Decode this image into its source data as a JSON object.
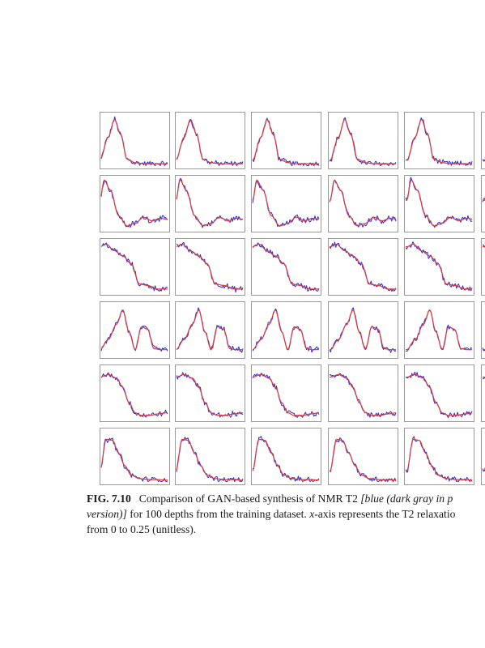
{
  "caption": {
    "label": "FIG. 7.10",
    "line1_text": "Comparison of GAN-based synthesis of NMR T2 ",
    "line1_italic": "[blue (dark gray in p",
    "line2_italic": "version)]",
    "line2_text_a": " for 100 depths from the training dataset. ",
    "line2_italic_x": "x",
    "line2_text_b": "-axis represents the T2 relaxatio",
    "line3_text": "from 0 to 0.25 (unitless)."
  },
  "colors": {
    "measured": "#2a2ad6",
    "synthesized": "#d9383a",
    "frame": "#9a9a9a"
  },
  "chart_data": {
    "type": "line",
    "layout": "grid of small multiples, 6 rows visible, 5 full columns plus a cut-off sixth",
    "series_names_from_caption": [
      "blue (measured)",
      "red (synthesized)"
    ],
    "x_range": [
      0,
      64
    ],
    "y_range": [
      0,
      1
    ],
    "rows": [
      {
        "row": 1,
        "shape": "single narrow peak",
        "x": [
          0,
          8,
          14,
          20,
          26,
          34,
          42,
          52,
          64
        ],
        "y": [
          0.1,
          0.55,
          0.9,
          0.6,
          0.12,
          0.05,
          0.03,
          0.03,
          0.03
        ]
      },
      {
        "row": 2,
        "shape": "main peak with small secondary bump",
        "x": [
          0,
          4,
          10,
          18,
          26,
          34,
          42,
          50,
          58,
          64
        ],
        "y": [
          0.55,
          0.95,
          0.75,
          0.25,
          0.05,
          0.1,
          0.22,
          0.15,
          0.2,
          0.18
        ]
      },
      {
        "row": 3,
        "shape": "broad high plateau then decay",
        "x": [
          0,
          6,
          14,
          22,
          30,
          38,
          46,
          56,
          64
        ],
        "y": [
          0.88,
          0.93,
          0.8,
          0.7,
          0.55,
          0.15,
          0.12,
          0.05,
          0.05
        ]
      },
      {
        "row": 4,
        "shape": "bimodal peaks",
        "x": [
          0,
          8,
          16,
          22,
          28,
          34,
          40,
          46,
          52,
          58,
          64
        ],
        "y": [
          0.1,
          0.3,
          0.6,
          0.88,
          0.45,
          0.1,
          0.55,
          0.5,
          0.12,
          0.1,
          0.1
        ]
      },
      {
        "row": 5,
        "shape": "high plateau with sharp drop",
        "x": [
          0,
          8,
          16,
          22,
          28,
          34,
          40,
          48,
          56,
          64
        ],
        "y": [
          0.8,
          0.85,
          0.78,
          0.6,
          0.3,
          0.1,
          0.05,
          0.05,
          0.08,
          0.1
        ]
      },
      {
        "row": 6,
        "shape": "single peak with long low tail",
        "x": [
          0,
          6,
          12,
          18,
          24,
          30,
          38,
          48,
          56,
          64
        ],
        "y": [
          0.2,
          0.82,
          0.8,
          0.55,
          0.3,
          0.12,
          0.05,
          0.03,
          0.03,
          0.02
        ]
      }
    ]
  }
}
